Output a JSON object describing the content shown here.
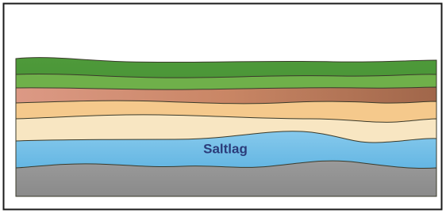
{
  "diagram": {
    "label": "Saltlag"
  }
}
